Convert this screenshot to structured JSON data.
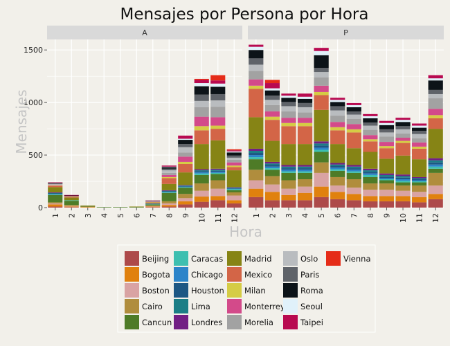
{
  "chart_data": {
    "type": "bar",
    "stacked": true,
    "title": "Mensajes por Persona por Hora",
    "xlabel": "Hora",
    "ylabel": "Mensajes",
    "ylim": [
      0,
      1600
    ],
    "yticks": [
      0,
      500,
      1000,
      1500
    ],
    "categories": [
      "1",
      "2",
      "3",
      "4",
      "5",
      "6",
      "7",
      "8",
      "9",
      "10",
      "11",
      "12"
    ],
    "grid": true,
    "legend_position": "bottom",
    "legend_columns": 5,
    "colors": {
      "Beijing": "#ad4a4a",
      "Bogota": "#e0810e",
      "Boston": "#d9a3a3",
      "Cairo": "#b08d3d",
      "Cancun": "#4e7b27",
      "Caracas": "#3dbfb0",
      "Chicago": "#2c84c9",
      "Houston": "#1d5784",
      "Lima": "#1b7e86",
      "Londres": "#721f84",
      "Madrid": "#868415",
      "Mexico": "#d36547",
      "Milan": "#d5cc45",
      "Monterrey": "#d34a8a",
      "Morelia": "#a2a2a2",
      "Oslo": "#b9bcbf",
      "Paris": "#5f6369",
      "Roma": "#0c1318",
      "Seoul": "#e0f1fa",
      "Taipei": "#b80a50",
      "Vienna": "#e52c18"
    },
    "facets": [
      {
        "label": "A",
        "series": [
          {
            "name": "Beijing",
            "values": [
              10,
              5,
              0,
              0,
              0,
              0,
              5,
              10,
              30,
              55,
              70,
              40
            ]
          },
          {
            "name": "Bogota",
            "values": [
              20,
              5,
              5,
              0,
              0,
              0,
              5,
              15,
              30,
              50,
              40,
              30
            ]
          },
          {
            "name": "Boston",
            "values": [
              10,
              5,
              0,
              0,
              0,
              0,
              5,
              15,
              30,
              55,
              70,
              45
            ]
          },
          {
            "name": "Cairo",
            "values": [
              10,
              10,
              5,
              0,
              0,
              0,
              5,
              20,
              40,
              70,
              80,
              30
            ]
          },
          {
            "name": "Cancun",
            "values": [
              70,
              40,
              5,
              5,
              5,
              5,
              10,
              80,
              60,
              80,
              60,
              20
            ]
          },
          {
            "name": "Caracas",
            "values": [
              5,
              5,
              0,
              0,
              0,
              0,
              2,
              5,
              5,
              15,
              10,
              10
            ]
          },
          {
            "name": "Chicago",
            "values": [
              5,
              0,
              0,
              0,
              0,
              0,
              2,
              5,
              5,
              10,
              10,
              5
            ]
          },
          {
            "name": "Houston",
            "values": [
              5,
              0,
              0,
              0,
              0,
              0,
              2,
              5,
              5,
              10,
              10,
              5
            ]
          },
          {
            "name": "Lima",
            "values": [
              5,
              0,
              0,
              0,
              0,
              0,
              2,
              5,
              5,
              10,
              10,
              5
            ]
          },
          {
            "name": "Londres",
            "values": [
              5,
              0,
              0,
              0,
              0,
              0,
              2,
              5,
              5,
              10,
              10,
              5
            ]
          },
          {
            "name": "Madrid",
            "values": [
              50,
              25,
              5,
              0,
              0,
              5,
              5,
              60,
              120,
              240,
              270,
              160
            ]
          },
          {
            "name": "Mexico",
            "values": [
              10,
              5,
              0,
              0,
              0,
              0,
              5,
              55,
              80,
              130,
              110,
              30
            ]
          },
          {
            "name": "Milan",
            "values": [
              5,
              5,
              0,
              0,
              0,
              0,
              3,
              10,
              20,
              40,
              30,
              15
            ]
          },
          {
            "name": "Monterrey",
            "values": [
              5,
              5,
              0,
              0,
              0,
              0,
              3,
              20,
              50,
              90,
              80,
              30
            ]
          },
          {
            "name": "Morelia",
            "values": [
              5,
              0,
              0,
              0,
              0,
              0,
              3,
              20,
              40,
              90,
              100,
              25
            ]
          },
          {
            "name": "Oslo",
            "values": [
              5,
              0,
              0,
              0,
              0,
              0,
              3,
              25,
              50,
              60,
              60,
              20
            ]
          },
          {
            "name": "Paris",
            "values": [
              5,
              0,
              0,
              0,
              0,
              0,
              2,
              15,
              30,
              60,
              60,
              20
            ]
          },
          {
            "name": "Roma",
            "values": [
              5,
              5,
              0,
              0,
              0,
              0,
              3,
              15,
              40,
              80,
              70,
              30
            ]
          },
          {
            "name": "Seoul",
            "values": [
              0,
              0,
              0,
              0,
              0,
              0,
              0,
              5,
              10,
              30,
              30,
              10
            ]
          },
          {
            "name": "Taipei",
            "values": [
              5,
              5,
              0,
              0,
              0,
              0,
              2,
              10,
              30,
              30,
              30,
              10
            ]
          },
          {
            "name": "Vienna",
            "values": [
              0,
              0,
              0,
              0,
              0,
              0,
              0,
              0,
              0,
              10,
              50,
              10
            ]
          }
        ]
      },
      {
        "label": "P",
        "series": [
          {
            "name": "Beijing",
            "values": [
              100,
              70,
              70,
              70,
              100,
              80,
              70,
              60,
              60,
              60,
              50,
              80
            ]
          },
          {
            "name": "Bogota",
            "values": [
              80,
              80,
              50,
              70,
              100,
              70,
              60,
              50,
              50,
              50,
              50,
              50
            ]
          },
          {
            "name": "Boston",
            "values": [
              80,
              70,
              60,
              60,
              130,
              60,
              60,
              60,
              60,
              50,
              50,
              80
            ]
          },
          {
            "name": "Cairo",
            "values": [
              100,
              80,
              80,
              70,
              100,
              80,
              80,
              60,
              60,
              50,
              60,
              120
            ]
          },
          {
            "name": "Cancun",
            "values": [
              100,
              60,
              70,
              60,
              100,
              60,
              60,
              60,
              30,
              30,
              30,
              40
            ]
          },
          {
            "name": "Caracas",
            "values": [
              20,
              15,
              15,
              15,
              20,
              15,
              15,
              20,
              10,
              15,
              10,
              20
            ]
          },
          {
            "name": "Chicago",
            "values": [
              20,
              15,
              15,
              15,
              20,
              15,
              15,
              15,
              10,
              15,
              10,
              20
            ]
          },
          {
            "name": "Houston",
            "values": [
              20,
              15,
              15,
              15,
              20,
              15,
              15,
              15,
              15,
              15,
              10,
              20
            ]
          },
          {
            "name": "Lima",
            "values": [
              20,
              15,
              15,
              15,
              20,
              15,
              15,
              15,
              15,
              15,
              10,
              20
            ]
          },
          {
            "name": "Londres",
            "values": [
              20,
              15,
              15,
              15,
              20,
              15,
              15,
              15,
              15,
              15,
              10,
              20
            ]
          },
          {
            "name": "Madrid",
            "values": [
              300,
              200,
              200,
              200,
              300,
              180,
              160,
              160,
              140,
              180,
              170,
              280
            ]
          },
          {
            "name": "Mexico",
            "values": [
              270,
              200,
              170,
              170,
              140,
              130,
              150,
              100,
              100,
              120,
              100,
              100
            ]
          },
          {
            "name": "Milan",
            "values": [
              30,
              30,
              30,
              30,
              30,
              30,
              30,
              20,
              20,
              20,
              20,
              30
            ]
          },
          {
            "name": "Monterrey",
            "values": [
              60,
              50,
              50,
              50,
              60,
              50,
              50,
              40,
              40,
              30,
              40,
              60
            ]
          },
          {
            "name": "Morelia",
            "values": [
              80,
              60,
              60,
              50,
              80,
              60,
              50,
              50,
              50,
              40,
              40,
              100
            ]
          },
          {
            "name": "Oslo",
            "values": [
              60,
              50,
              50,
              50,
              50,
              50,
              40,
              40,
              40,
              40,
              40,
              40
            ]
          },
          {
            "name": "Paris",
            "values": [
              60,
              40,
              40,
              40,
              40,
              40,
              30,
              30,
              30,
              30,
              30,
              40
            ]
          },
          {
            "name": "Roma",
            "values": [
              80,
              50,
              40,
              40,
              120,
              40,
              40,
              40,
              40,
              40,
              30,
              90
            ]
          },
          {
            "name": "Seoul",
            "values": [
              30,
              20,
              20,
              20,
              40,
              20,
              20,
              20,
              20,
              20,
              20,
              20
            ]
          },
          {
            "name": "Taipei",
            "values": [
              20,
              50,
              20,
              30,
              30,
              20,
              20,
              20,
              20,
              20,
              20,
              30
            ]
          },
          {
            "name": "Vienna",
            "values": [
              0,
              30,
              0,
              0,
              0,
              0,
              0,
              0,
              0,
              0,
              0,
              0
            ]
          }
        ]
      }
    ],
    "legend": {
      "title": "",
      "columns": [
        [
          "Beijing",
          "Bogota",
          "Boston",
          "Cairo",
          "Cancun"
        ],
        [
          "Caracas",
          "Chicago",
          "Houston",
          "Lima",
          "Londres"
        ],
        [
          "Madrid",
          "Mexico",
          "Milan",
          "Monterrey",
          "Morelia"
        ],
        [
          "Oslo",
          "Paris",
          "Roma",
          "Seoul",
          "Taipei"
        ],
        [
          "Vienna"
        ]
      ]
    }
  }
}
